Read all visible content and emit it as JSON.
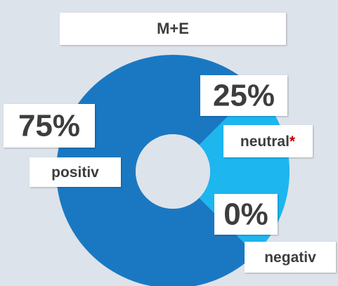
{
  "chart_data": {
    "type": "donut",
    "title": "M+E",
    "categories": [
      "positiv",
      "neutral",
      "negativ"
    ],
    "values": [
      75,
      25,
      0
    ],
    "value_labels": [
      "75%",
      "25%",
      "0%"
    ],
    "neutral_mark": "*",
    "colors": [
      "#1a78c2",
      "#1db6ef",
      "#7fd3f3"
    ]
  }
}
